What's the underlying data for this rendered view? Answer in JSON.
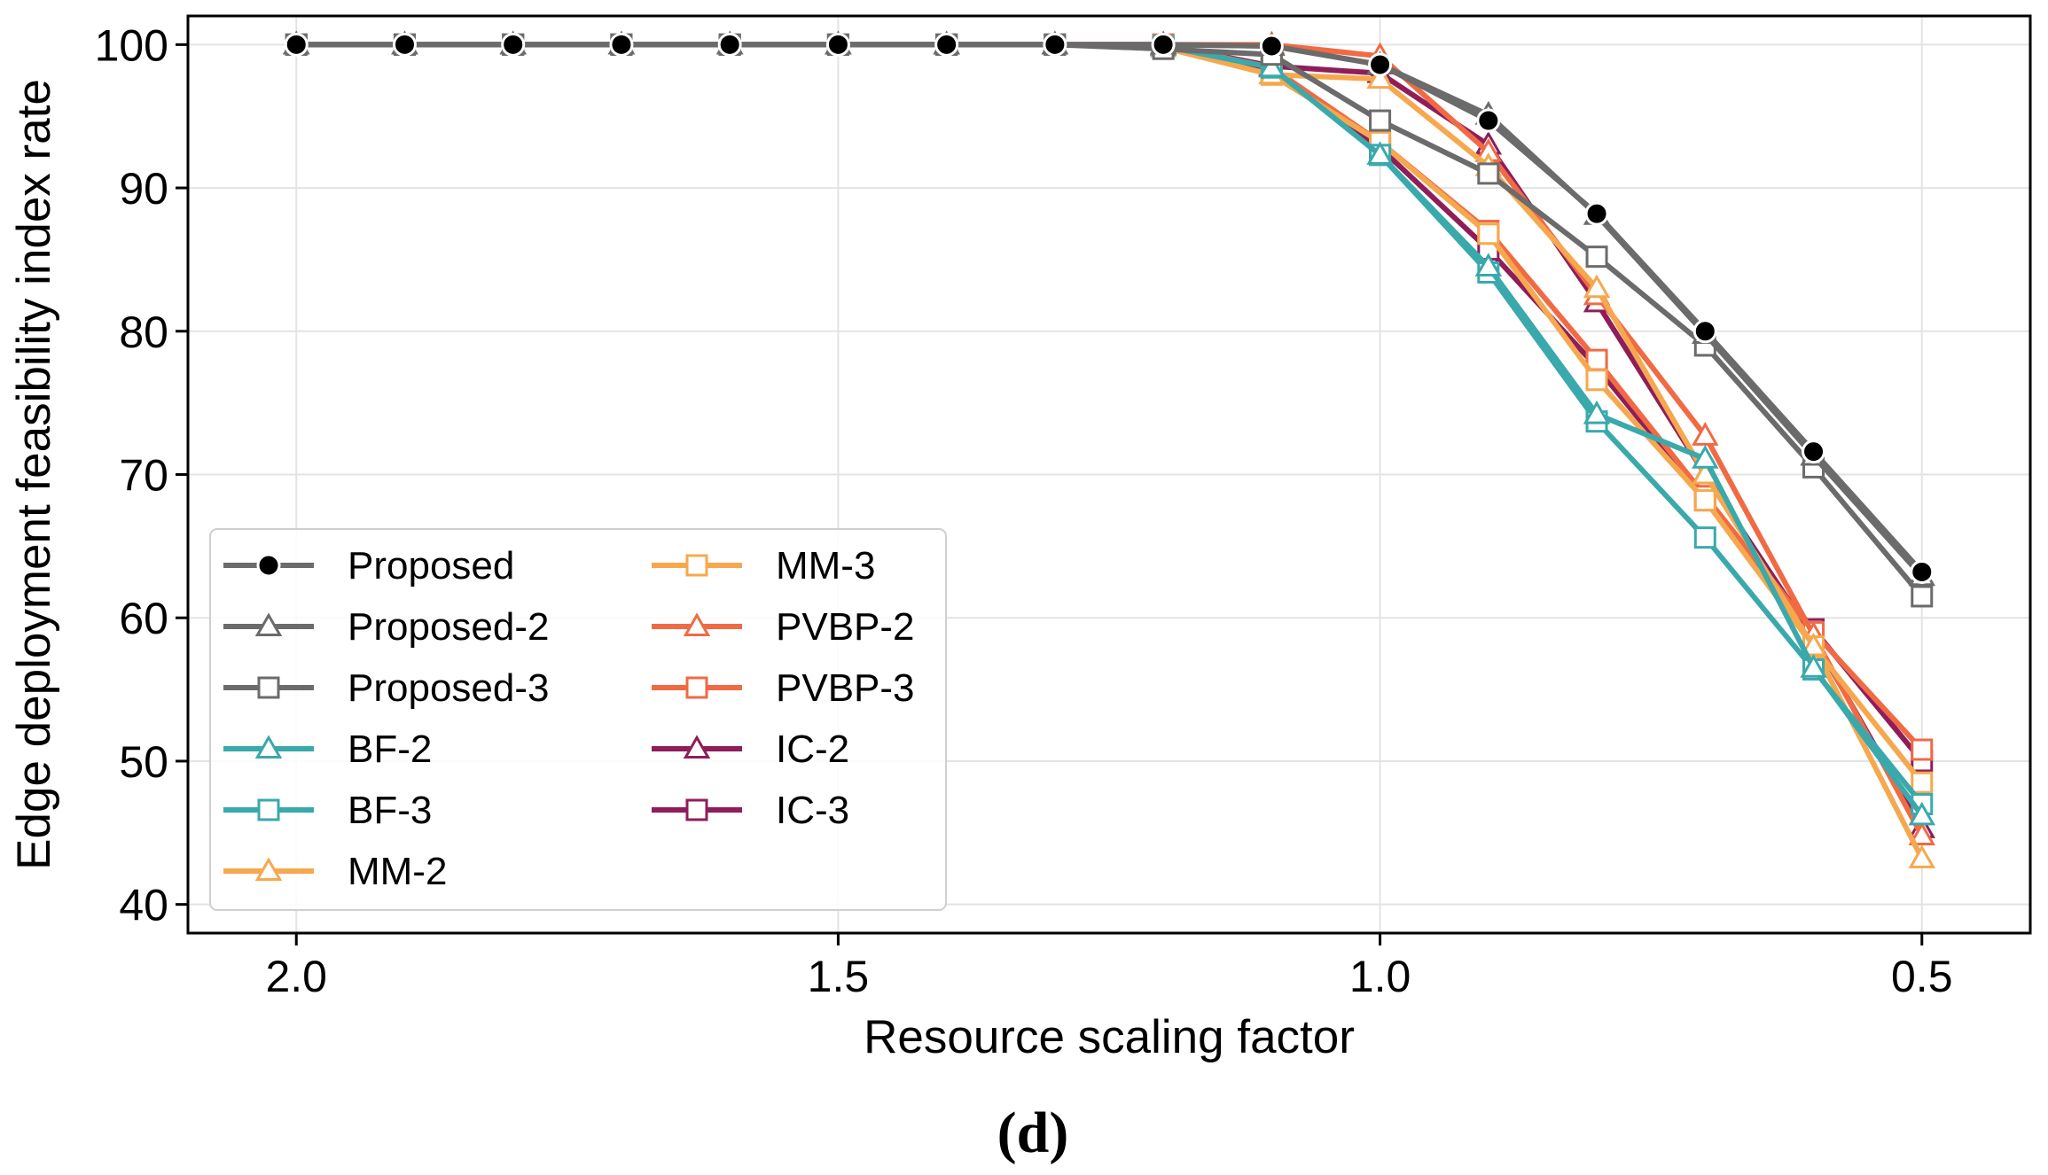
{
  "chart_data": {
    "type": "line",
    "title": "",
    "xlabel": "Resource scaling factor",
    "ylabel": "Edge deployment feasibility index rate",
    "caption": "(d)",
    "x": [
      2.0,
      1.9,
      1.8,
      1.7,
      1.6,
      1.5,
      1.4,
      1.3,
      1.2,
      1.1,
      1.0,
      0.9,
      0.8,
      0.7,
      0.6,
      0.5
    ],
    "xlim": [
      2.1,
      0.4
    ],
    "ylim": [
      38,
      102
    ],
    "xticks": [
      2.0,
      1.5,
      1.0,
      0.5
    ],
    "xtick_labels": [
      "2.0",
      "1.5",
      "1.0",
      "0.5"
    ],
    "yticks": [
      40,
      50,
      60,
      70,
      80,
      90,
      100
    ],
    "ytick_labels": [
      "40",
      "50",
      "60",
      "70",
      "80",
      "90",
      "100"
    ],
    "grid": true,
    "legend_position": "lower-left",
    "series": [
      {
        "name": "Proposed",
        "color": "#6b6b6b",
        "marker": "circle",
        "values": [
          100,
          100,
          100,
          100,
          100,
          100,
          100,
          100,
          100,
          99.9,
          98.6,
          94.7,
          88.2,
          80,
          71.6,
          63.2
        ]
      },
      {
        "name": "Proposed-2",
        "color": "#6b6b6b",
        "marker": "triangle",
        "values": [
          100,
          100,
          100,
          100,
          100,
          100,
          100,
          100,
          100,
          99.9,
          98.6,
          95.1,
          88.1,
          79.8,
          71.3,
          62.9
        ]
      },
      {
        "name": "Proposed-3",
        "color": "#6b6b6b",
        "marker": "square",
        "values": [
          100,
          100,
          100,
          100,
          100,
          100,
          100,
          100,
          99.7,
          99.3,
          94.7,
          91.0,
          85.2,
          79.0,
          70.5,
          61.5
        ]
      },
      {
        "name": "BF-2",
        "color": "#3aa9ac",
        "marker": "triangle",
        "values": [
          100,
          100,
          100,
          100,
          100,
          100,
          100,
          100,
          99.9,
          98.4,
          92.3,
          84.5,
          74.2,
          71.1,
          56.5,
          46.2
        ]
      },
      {
        "name": "BF-3",
        "color": "#3aa9ac",
        "marker": "square",
        "values": [
          100,
          100,
          100,
          100,
          100,
          100,
          100,
          100,
          99.9,
          98.4,
          92.3,
          84.1,
          73.7,
          65.6,
          56.4,
          47.0
        ]
      },
      {
        "name": "MM-2",
        "color": "#f6a84e",
        "marker": "triangle",
        "values": [
          100,
          100,
          100,
          100,
          100,
          100,
          100,
          100,
          99.8,
          97.9,
          97.6,
          91.5,
          83.0,
          70.0,
          58.0,
          43.2
        ]
      },
      {
        "name": "MM-3",
        "color": "#f6a84e",
        "marker": "square",
        "values": [
          100,
          100,
          100,
          100,
          100,
          100,
          100,
          100,
          99.8,
          97.9,
          93.2,
          86.8,
          76.6,
          68.2,
          58.0,
          48.5
        ]
      },
      {
        "name": "PVBP-2",
        "color": "#f06a44",
        "marker": "triangle",
        "values": [
          100,
          100,
          100,
          100,
          100,
          100,
          100,
          100,
          100,
          100,
          99.2,
          92.5,
          82.5,
          72.7,
          58.8,
          44.8
        ]
      },
      {
        "name": "PVBP-3",
        "color": "#f06a44",
        "marker": "square",
        "values": [
          100,
          100,
          100,
          100,
          100,
          100,
          100,
          100,
          100,
          98.4,
          93.2,
          87.0,
          78.0,
          68.5,
          59.0,
          50.8
        ]
      },
      {
        "name": "IC-2",
        "color": "#8e1d5a",
        "marker": "triangle",
        "values": [
          100,
          100,
          100,
          100,
          100,
          100,
          100,
          100,
          100,
          98.5,
          98.0,
          93.0,
          82.0,
          70.0,
          58.6,
          45.3
        ]
      },
      {
        "name": "IC-3",
        "color": "#8e1d5a",
        "marker": "square",
        "values": [
          100,
          100,
          100,
          100,
          100,
          100,
          100,
          100,
          100,
          98.3,
          92.8,
          85.7,
          77.5,
          68.2,
          59.2,
          50.0
        ]
      }
    ]
  }
}
